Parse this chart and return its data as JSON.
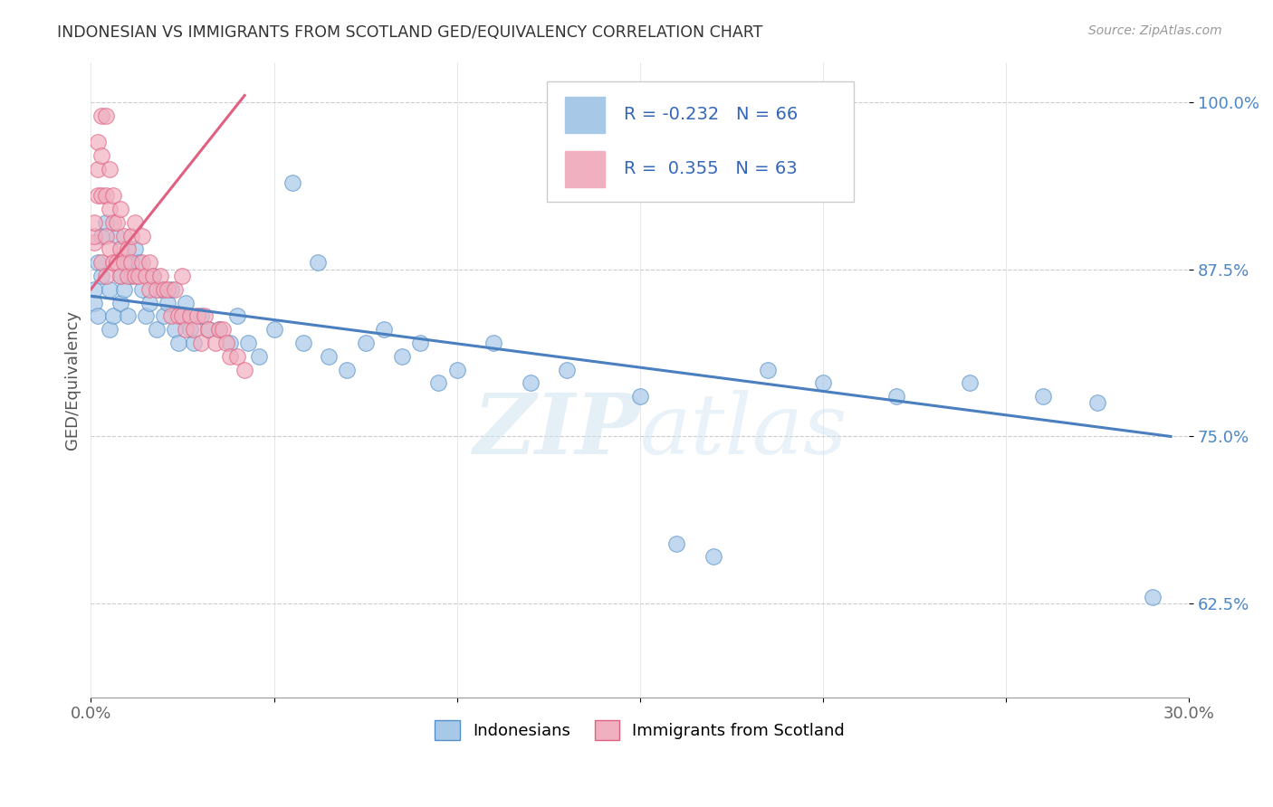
{
  "title": "INDONESIAN VS IMMIGRANTS FROM SCOTLAND GED/EQUIVALENCY CORRELATION CHART",
  "source": "Source: ZipAtlas.com",
  "ylabel": "GED/Equivalency",
  "xmin": 0.0,
  "xmax": 0.3,
  "ymin": 0.555,
  "ymax": 1.03,
  "yticks": [
    0.625,
    0.75,
    0.875,
    1.0
  ],
  "ytick_labels": [
    "62.5%",
    "75.0%",
    "87.5%",
    "100.0%"
  ],
  "xticks": [
    0.0,
    0.05,
    0.1,
    0.15,
    0.2,
    0.25,
    0.3
  ],
  "legend_label1": "Indonesians",
  "legend_label2": "Immigrants from Scotland",
  "R1": -0.232,
  "N1": 66,
  "R2": 0.355,
  "N2": 63,
  "color_blue": "#a8c8e8",
  "color_blue_edge": "#5590c8",
  "color_blue_line": "#4a7fc0",
  "color_pink": "#f0b0c0",
  "color_pink_edge": "#e06080",
  "color_pink_line": "#e06080",
  "watermark": "ZIPatlas",
  "blue_x": [
    0.001,
    0.001,
    0.002,
    0.002,
    0.003,
    0.003,
    0.004,
    0.005,
    0.005,
    0.006,
    0.007,
    0.008,
    0.008,
    0.009,
    0.01,
    0.01,
    0.011,
    0.012,
    0.013,
    0.014,
    0.015,
    0.016,
    0.017,
    0.018,
    0.019,
    0.02,
    0.021,
    0.022,
    0.023,
    0.024,
    0.025,
    0.026,
    0.027,
    0.028,
    0.03,
    0.032,
    0.035,
    0.038,
    0.04,
    0.043,
    0.046,
    0.05,
    0.055,
    0.058,
    0.062,
    0.065,
    0.07,
    0.075,
    0.08,
    0.085,
    0.09,
    0.095,
    0.1,
    0.11,
    0.12,
    0.13,
    0.15,
    0.16,
    0.17,
    0.185,
    0.2,
    0.22,
    0.24,
    0.26,
    0.275,
    0.29
  ],
  "blue_y": [
    0.86,
    0.85,
    0.84,
    0.88,
    0.9,
    0.87,
    0.91,
    0.86,
    0.83,
    0.84,
    0.9,
    0.85,
    0.87,
    0.86,
    0.88,
    0.84,
    0.87,
    0.89,
    0.88,
    0.86,
    0.84,
    0.85,
    0.87,
    0.83,
    0.86,
    0.84,
    0.85,
    0.86,
    0.83,
    0.82,
    0.84,
    0.85,
    0.83,
    0.82,
    0.84,
    0.83,
    0.83,
    0.82,
    0.84,
    0.82,
    0.81,
    0.83,
    0.94,
    0.82,
    0.88,
    0.81,
    0.8,
    0.82,
    0.83,
    0.81,
    0.82,
    0.79,
    0.8,
    0.82,
    0.79,
    0.8,
    0.78,
    0.67,
    0.66,
    0.8,
    0.79,
    0.78,
    0.79,
    0.78,
    0.775,
    0.63
  ],
  "pink_x": [
    0.001,
    0.001,
    0.001,
    0.002,
    0.002,
    0.002,
    0.003,
    0.003,
    0.003,
    0.003,
    0.004,
    0.004,
    0.004,
    0.004,
    0.005,
    0.005,
    0.005,
    0.006,
    0.006,
    0.006,
    0.007,
    0.007,
    0.008,
    0.008,
    0.008,
    0.009,
    0.009,
    0.01,
    0.01,
    0.011,
    0.011,
    0.012,
    0.012,
    0.013,
    0.014,
    0.014,
    0.015,
    0.016,
    0.016,
    0.017,
    0.018,
    0.019,
    0.02,
    0.021,
    0.022,
    0.023,
    0.024,
    0.025,
    0.025,
    0.026,
    0.027,
    0.028,
    0.029,
    0.03,
    0.031,
    0.032,
    0.034,
    0.035,
    0.036,
    0.037,
    0.038,
    0.04,
    0.042
  ],
  "pink_y": [
    0.895,
    0.9,
    0.91,
    0.93,
    0.95,
    0.97,
    0.88,
    0.93,
    0.96,
    0.99,
    0.87,
    0.9,
    0.93,
    0.99,
    0.89,
    0.92,
    0.95,
    0.88,
    0.91,
    0.93,
    0.88,
    0.91,
    0.87,
    0.89,
    0.92,
    0.88,
    0.9,
    0.87,
    0.89,
    0.88,
    0.9,
    0.87,
    0.91,
    0.87,
    0.88,
    0.9,
    0.87,
    0.86,
    0.88,
    0.87,
    0.86,
    0.87,
    0.86,
    0.86,
    0.84,
    0.86,
    0.84,
    0.84,
    0.87,
    0.83,
    0.84,
    0.83,
    0.84,
    0.82,
    0.84,
    0.83,
    0.82,
    0.83,
    0.83,
    0.82,
    0.81,
    0.81,
    0.8
  ],
  "blue_line_x0": 0.0,
  "blue_line_x1": 0.295,
  "blue_line_y0": 0.855,
  "blue_line_y1": 0.75,
  "pink_line_x0": 0.0,
  "pink_line_x1": 0.042,
  "pink_line_y0": 0.86,
  "pink_line_y1": 1.005
}
